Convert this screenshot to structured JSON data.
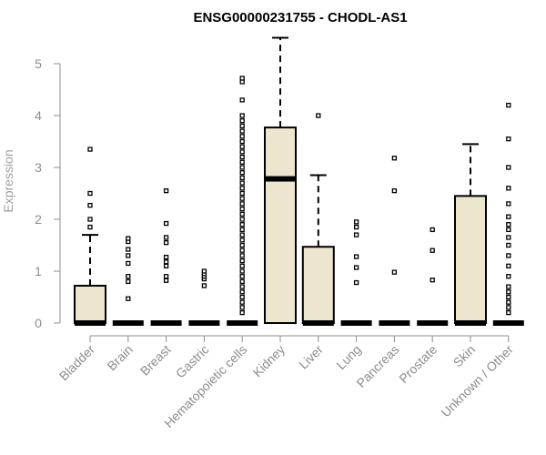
{
  "chart_data": {
    "type": "boxplot",
    "title": "ENSG00000231755 - CHODL-AS1",
    "xlabel": "",
    "ylabel": "Expression",
    "ylim": [
      0,
      5
    ],
    "yticks": [
      "0",
      "1",
      "2",
      "3",
      "4",
      "5"
    ],
    "categories": [
      "Bladder",
      "Brain",
      "Breast",
      "Gastric",
      "Hematopoietic cells",
      "Kidney",
      "Liver",
      "Lung",
      "Pancreas",
      "Prostate",
      "Skin",
      "Unknown / Other"
    ],
    "boxes": [
      {
        "category": "Bladder",
        "q1": 0,
        "median": 0,
        "q3": 0.72,
        "whisker_low": 0,
        "whisker_high": 1.7,
        "outliers": [
          1.85,
          2.0,
          2.27,
          2.5,
          3.35
        ]
      },
      {
        "category": "Brain",
        "q1": 0,
        "median": 0,
        "q3": 0,
        "whisker_low": 0,
        "whisker_high": 0,
        "outliers": [
          0.47,
          0.8,
          0.9,
          1.15,
          1.3,
          1.42,
          1.57,
          1.63
        ]
      },
      {
        "category": "Breast",
        "q1": 0,
        "median": 0,
        "q3": 0,
        "whisker_low": 0,
        "whisker_high": 0,
        "outliers": [
          0.82,
          0.9,
          1.1,
          1.18,
          1.27,
          1.55,
          1.65,
          1.92,
          2.55
        ]
      },
      {
        "category": "Gastric",
        "q1": 0,
        "median": 0,
        "q3": 0,
        "whisker_low": 0,
        "whisker_high": 0,
        "outliers": [
          0.72,
          0.85,
          0.9,
          0.95,
          1.0
        ]
      },
      {
        "category": "Hematopoietic cells",
        "q1": 0,
        "median": 0,
        "q3": 0,
        "whisker_low": 0,
        "whisker_high": 0,
        "outliers": [
          0.2,
          0.3,
          0.4,
          0.5,
          0.6,
          0.7,
          0.8,
          0.9,
          1.0,
          1.1,
          1.2,
          1.3,
          1.4,
          1.5,
          1.6,
          1.7,
          1.8,
          1.9,
          2.0,
          2.1,
          2.2,
          2.3,
          2.4,
          2.5,
          2.6,
          2.7,
          2.8,
          2.9,
          3.0,
          3.1,
          3.2,
          3.3,
          3.4,
          3.5,
          3.6,
          3.7,
          3.8,
          3.9,
          4.0,
          4.3,
          4.65,
          4.72
        ]
      },
      {
        "category": "Kidney",
        "q1": 0,
        "median": 2.78,
        "q3": 3.77,
        "whisker_low": 0,
        "whisker_high": 5.5,
        "outliers": []
      },
      {
        "category": "Liver",
        "q1": 0,
        "median": 0,
        "q3": 1.47,
        "whisker_low": 0,
        "whisker_high": 2.85,
        "outliers": [
          4.0
        ]
      },
      {
        "category": "Lung",
        "q1": 0,
        "median": 0,
        "q3": 0,
        "whisker_low": 0,
        "whisker_high": 0,
        "outliers": [
          0.78,
          1.07,
          1.28,
          1.7,
          1.85,
          1.95
        ]
      },
      {
        "category": "Pancreas",
        "q1": 0,
        "median": 0,
        "q3": 0,
        "whisker_low": 0,
        "whisker_high": 0,
        "outliers": [
          0.98,
          2.55,
          3.18
        ]
      },
      {
        "category": "Prostate",
        "q1": 0,
        "median": 0,
        "q3": 0,
        "whisker_low": 0,
        "whisker_high": 0,
        "outliers": [
          0.83,
          1.4,
          1.8
        ]
      },
      {
        "category": "Skin",
        "q1": 0,
        "median": 0,
        "q3": 2.45,
        "whisker_low": 0,
        "whisker_high": 3.45,
        "outliers": []
      },
      {
        "category": "Unknown / Other",
        "q1": 0,
        "median": 0,
        "q3": 0,
        "whisker_low": 0,
        "whisker_high": 0,
        "outliers": [
          0.2,
          0.3,
          0.4,
          0.5,
          0.6,
          0.7,
          0.9,
          1.1,
          1.3,
          1.5,
          1.65,
          1.8,
          1.9,
          2.05,
          2.3,
          2.6,
          3.0,
          3.55,
          4.2
        ]
      }
    ],
    "colors": {
      "box_fill": "#ede6cf",
      "stroke": "#000000",
      "axis": "#8c8c8c",
      "title": "#000000"
    },
    "grid": false,
    "legend": "none"
  }
}
